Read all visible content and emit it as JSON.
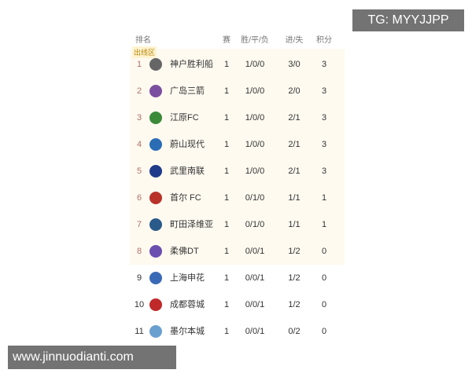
{
  "header": {
    "rank": "排名",
    "played": "赛",
    "wdl": "胜/平/负",
    "goals": "进/失",
    "points": "积分"
  },
  "zone_label": "出线区",
  "colors": {
    "zone_bg": "#fffaf0",
    "zone_rank": "#b0706a"
  },
  "rows": [
    {
      "rank": "1",
      "team": "神户胜利船",
      "played": "1",
      "wdl": "1/0/0",
      "goals": "3/0",
      "points": "3",
      "logo_color": "#666"
    },
    {
      "rank": "2",
      "team": "广岛三箭",
      "played": "1",
      "wdl": "1/0/0",
      "goals": "2/0",
      "points": "3",
      "logo_color": "#7b4fa0"
    },
    {
      "rank": "3",
      "team": "江原FC",
      "played": "1",
      "wdl": "1/0/0",
      "goals": "2/1",
      "points": "3",
      "logo_color": "#3a8a3a"
    },
    {
      "rank": "4",
      "team": "蔚山现代",
      "played": "1",
      "wdl": "1/0/0",
      "goals": "2/1",
      "points": "3",
      "logo_color": "#2a6db5"
    },
    {
      "rank": "5",
      "team": "武里南联",
      "played": "1",
      "wdl": "1/0/0",
      "goals": "2/1",
      "points": "3",
      "logo_color": "#1e3a8a"
    },
    {
      "rank": "6",
      "team": "首尔 FC",
      "played": "1",
      "wdl": "0/1/0",
      "goals": "1/1",
      "points": "1",
      "logo_color": "#b8322a"
    },
    {
      "rank": "7",
      "team": "町田泽维亚",
      "played": "1",
      "wdl": "0/1/0",
      "goals": "1/1",
      "points": "1",
      "logo_color": "#2a5a8a"
    },
    {
      "rank": "8",
      "team": "柔佛DT",
      "played": "1",
      "wdl": "0/0/1",
      "goals": "1/2",
      "points": "0",
      "logo_color": "#6a4fb0"
    },
    {
      "rank": "9",
      "team": "上海申花",
      "played": "1",
      "wdl": "0/0/1",
      "goals": "1/2",
      "points": "0",
      "logo_color": "#3a6ab5"
    },
    {
      "rank": "10",
      "team": "成都蓉城",
      "played": "1",
      "wdl": "0/0/1",
      "goals": "1/2",
      "points": "0",
      "logo_color": "#c0282a"
    },
    {
      "rank": "11",
      "team": "墨尔本城",
      "played": "1",
      "wdl": "0/0/1",
      "goals": "0/2",
      "points": "0",
      "logo_color": "#6aa0d0"
    }
  ],
  "watermarks": {
    "top": "TG: MYYJJPP",
    "bottom": "www.jinnuodianti.com"
  }
}
